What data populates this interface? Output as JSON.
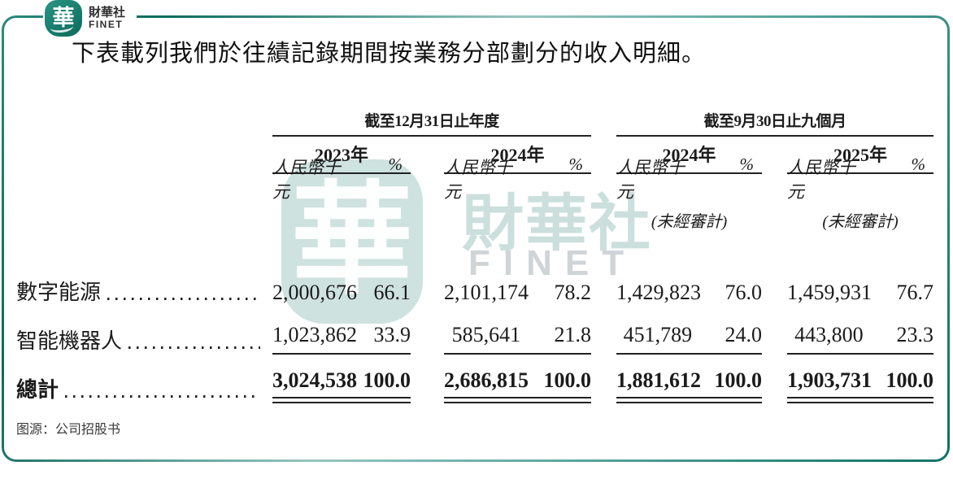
{
  "logo": {
    "seal_char": "華",
    "name_cn": "財華社",
    "name_en": "FINET"
  },
  "heading": "下表載列我們於往績記錄期間按業務分部劃分的收入明細。",
  "watermark": {
    "seal_char": "華",
    "text_cn": "財華社",
    "text_en": "FINET"
  },
  "table": {
    "col_groups": [
      {
        "label": "截至12月31日止年度"
      },
      {
        "label": "截至9月30日止九個月"
      }
    ],
    "years": [
      "2023年",
      "2024年",
      "2024年",
      "2025年"
    ],
    "subheaders": {
      "amount": "人民幣千元",
      "percent": "%",
      "unaudited": "(未經審計)"
    },
    "rows": [
      {
        "label": "數字能源",
        "values": [
          "2,000,676",
          "66.1",
          "2,101,174",
          "78.2",
          "1,429,823",
          "76.0",
          "1,459,931",
          "76.7"
        ]
      },
      {
        "label": "智能機器人",
        "values": [
          "1,023,862",
          "33.9",
          "585,641",
          "21.8",
          "451,789",
          "24.0",
          "443,800",
          "23.3"
        ]
      }
    ],
    "total": {
      "label": "總計",
      "values": [
        "3,024,538",
        "100.0",
        "2,686,815",
        "100.0",
        "1,881,612",
        "100.0",
        "1,903,731",
        "100.0"
      ]
    }
  },
  "source": "图源：公司招股书",
  "colors": {
    "border_teal_dark": "#0d6a5e",
    "border_teal_light": "#96c6bf",
    "logo_teal": "#0b6a5b",
    "watermark_teal": "#7fb2aa",
    "text": "#1b1b1b"
  }
}
